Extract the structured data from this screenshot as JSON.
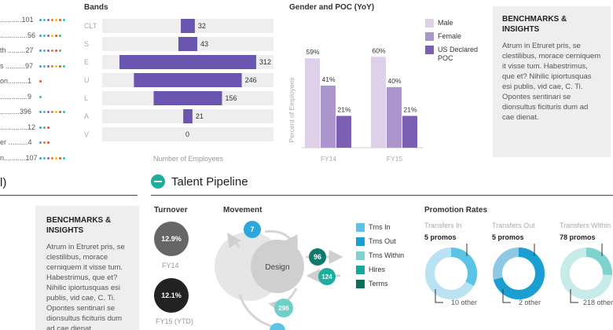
{
  "left_list": {
    "items": [
      {
        "label": "...........101",
        "dots": [
          "#3aa0d8",
          "#2ec4b6",
          "#9b59b6",
          "#e67e22",
          "#f1c40f",
          "#e74c3c",
          "#2ecc71"
        ]
      },
      {
        "label": "..............56",
        "dots": [
          "#3aa0d8",
          "#2ec4b6",
          "#9b59b6",
          "#f1c40f",
          "#e74c3c",
          "#2ecc71"
        ]
      },
      {
        "label": "th .........27",
        "dots": [
          "#3aa0d8",
          "#2ec4b6",
          "#9b59b6",
          "#e67e22",
          "#e74c3c",
          "#2ecc71"
        ]
      },
      {
        "label": "s ..........97",
        "dots": [
          "#3aa0d8",
          "#2ec4b6",
          "#9b59b6",
          "#e67e22",
          "#f1c40f",
          "#e74c3c",
          "#2ecc71"
        ]
      },
      {
        "label": "on..........1",
        "dots": [
          "#e74c3c"
        ]
      },
      {
        "label": "..............9",
        "dots": [
          "#2ecc71"
        ]
      },
      {
        "label": "..........396",
        "dots": [
          "#3aa0d8",
          "#2ec4b6",
          "#9b59b6",
          "#e67e22",
          "#f1c40f",
          "#e74c3c",
          "#2ecc71"
        ]
      },
      {
        "label": "..............12",
        "dots": [
          "#3aa0d8",
          "#2ecc71",
          "#e74c3c"
        ]
      },
      {
        "label": "er ..........4",
        "dots": [
          "#3aa0d8",
          "#e67e22",
          "#e74c3c"
        ]
      },
      {
        "label": "n...........107",
        "dots": [
          "#3aa0d8",
          "#2ec4b6",
          "#9b59b6",
          "#e67e22",
          "#f1c40f",
          "#e74c3c",
          "#2ecc71"
        ]
      }
    ]
  },
  "bands_chart": {
    "chart_data": {
      "type": "bar",
      "orientation": "horizontal-diverging",
      "title": "Bands",
      "xlabel": "Number of Employees",
      "categories": [
        "CLT",
        "S",
        "E",
        "U",
        "L",
        "A",
        "V"
      ],
      "values": [
        32,
        43,
        312,
        246,
        156,
        21,
        0
      ],
      "max": 312,
      "bar_color": "#6a56b0"
    }
  },
  "gender_chart": {
    "chart_data": {
      "type": "bar",
      "title": "Gender and POC (YoY)",
      "ylabel": "Percent of Employees",
      "categories": [
        "FY14",
        "FY15"
      ],
      "series": [
        {
          "name": "Male",
          "values": [
            59,
            60
          ],
          "color": "#ddd0e8"
        },
        {
          "name": "Female",
          "values": [
            41,
            40
          ],
          "color": "#ac95cc"
        },
        {
          "name": "US Declared POC",
          "values": [
            21,
            21
          ],
          "color": "#7b5fb3"
        }
      ],
      "value_suffix": "%",
      "ylim": [
        0,
        70
      ]
    },
    "legend": [
      "Male",
      "Female",
      "US Declared POC"
    ]
  },
  "benchmark_top": {
    "title": "BENCHMARKS & INSIGHTS",
    "body": "Atrum in Etruret pris, se clestilibus, morace cerniquem it visse tum. Habestrimus, que et? Nihilic ipiortusquas esi publis, vid cae, C. Ti. Opontes sentinari se dionsultus ficituris dum ad cae dienat."
  },
  "benchmark_bottom": {
    "title": "BENCHMARKS & INSIGHTS",
    "body": "Atrum in Etruret pris, se clestilibus, morace cerniquem it visse tum. Habestrimus, que et? Nihilic ipiortusquas esi publis, vid cae, C. Ti. Opontes sentinari se dionsultus ficituris dum ad cae dienat."
  },
  "left_section_fragment": "l)",
  "talent_pipeline": {
    "title": "Talent Pipeline",
    "turnover": {
      "title": "Turnover",
      "items": [
        {
          "value": "12.9%",
          "label": "FY14"
        },
        {
          "value": "12.1%",
          "label": "FY15 (YTD)"
        }
      ]
    },
    "movement": {
      "title": "Movement",
      "center_label": "Design",
      "nodes": [
        {
          "value": "7",
          "color": "#2aa7dc"
        },
        {
          "value": "96",
          "color": "#0e7a6b"
        },
        {
          "value": "124",
          "color": "#1fae9e"
        },
        {
          "value": "296",
          "color": "#6fd0c8"
        }
      ],
      "legend": [
        {
          "label": "Trns In",
          "color": "#5bc3e6"
        },
        {
          "label": "Trns Out",
          "color": "#1a9fd2"
        },
        {
          "label": "Trns Within",
          "color": "#7fd3cf"
        },
        {
          "label": "Hires",
          "color": "#16a89a"
        },
        {
          "label": "Terms",
          "color": "#0e6e5e"
        }
      ]
    },
    "promotion_rates": {
      "title": "Promotion Rates",
      "chart_data": {
        "type": "pie",
        "groups": [
          {
            "name": "Transfers In",
            "promos": "5 promos",
            "percent": 33,
            "other": "10 other",
            "color": "#5bc3e6",
            "bg": "#b9e3f3"
          },
          {
            "name": "Transfers Out",
            "promos": "5 promos",
            "percent": 71,
            "other": "2 other",
            "color": "#1a9fd2",
            "bg": "#8ec8e6"
          },
          {
            "name": "Transfers Within",
            "promos": "78 promos",
            "percent": 26,
            "other": "218 other",
            "color": "#7fd3cf",
            "bg": "#c6ebe8"
          }
        ]
      }
    }
  }
}
